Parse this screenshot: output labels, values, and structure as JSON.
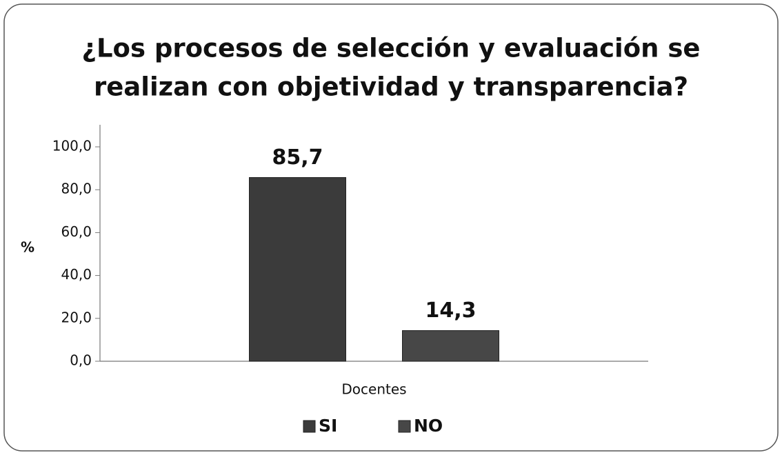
{
  "chart_data": {
    "type": "bar",
    "title": [
      "¿Los procesos de selección y evaluación se",
      "realizan con objetividad y transparencia?"
    ],
    "y_label": "%",
    "categories": [
      "Docentes"
    ],
    "series": [
      {
        "name": "SI",
        "color": "#3b3b3b",
        "values": [
          85.7
        ],
        "value_labels": [
          "85,7"
        ]
      },
      {
        "name": "NO",
        "color": "#474747",
        "values": [
          14.3
        ],
        "value_labels": [
          "14,3"
        ]
      }
    ],
    "ylim": [
      0,
      100
    ],
    "yticks": [
      {
        "value": 0,
        "label": "0,0"
      },
      {
        "value": 20,
        "label": "20,0"
      },
      {
        "value": 40,
        "label": "40,0"
      },
      {
        "value": 60,
        "label": "60,0"
      },
      {
        "value": 80,
        "label": "80,0"
      },
      {
        "value": 100,
        "label": "100,0"
      }
    ],
    "grid": false,
    "legend": "bottom"
  }
}
